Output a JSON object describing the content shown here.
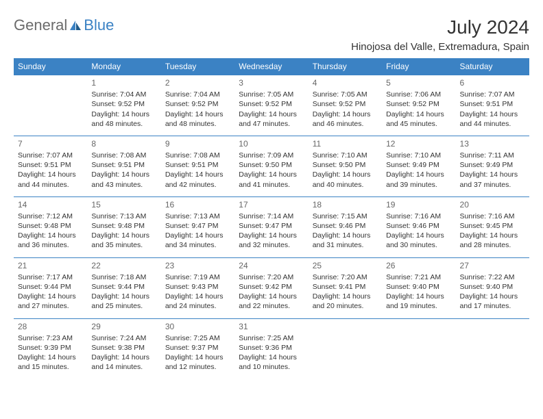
{
  "brand": {
    "part1": "General",
    "part2": "Blue"
  },
  "title": "July 2024",
  "location": "Hinojosa del Valle, Extremadura, Spain",
  "colors": {
    "header_bg": "#3b82c4",
    "header_text": "#ffffff",
    "brand_gray": "#6b6b6b",
    "brand_blue": "#3b82c4",
    "text": "#333333",
    "daynum": "#666666",
    "background": "#ffffff"
  },
  "typography": {
    "title_fontsize": 28,
    "location_fontsize": 15,
    "header_fontsize": 12,
    "cell_fontsize": 10.5,
    "daynum_fontsize": 12,
    "logo_fontsize": 22
  },
  "weekdays": [
    "Sunday",
    "Monday",
    "Tuesday",
    "Wednesday",
    "Thursday",
    "Friday",
    "Saturday"
  ],
  "weeks": [
    [
      null,
      {
        "day": "1",
        "sunrise": "Sunrise: 7:04 AM",
        "sunset": "Sunset: 9:52 PM",
        "dl1": "Daylight: 14 hours",
        "dl2": "and 48 minutes."
      },
      {
        "day": "2",
        "sunrise": "Sunrise: 7:04 AM",
        "sunset": "Sunset: 9:52 PM",
        "dl1": "Daylight: 14 hours",
        "dl2": "and 48 minutes."
      },
      {
        "day": "3",
        "sunrise": "Sunrise: 7:05 AM",
        "sunset": "Sunset: 9:52 PM",
        "dl1": "Daylight: 14 hours",
        "dl2": "and 47 minutes."
      },
      {
        "day": "4",
        "sunrise": "Sunrise: 7:05 AM",
        "sunset": "Sunset: 9:52 PM",
        "dl1": "Daylight: 14 hours",
        "dl2": "and 46 minutes."
      },
      {
        "day": "5",
        "sunrise": "Sunrise: 7:06 AM",
        "sunset": "Sunset: 9:52 PM",
        "dl1": "Daylight: 14 hours",
        "dl2": "and 45 minutes."
      },
      {
        "day": "6",
        "sunrise": "Sunrise: 7:07 AM",
        "sunset": "Sunset: 9:51 PM",
        "dl1": "Daylight: 14 hours",
        "dl2": "and 44 minutes."
      }
    ],
    [
      {
        "day": "7",
        "sunrise": "Sunrise: 7:07 AM",
        "sunset": "Sunset: 9:51 PM",
        "dl1": "Daylight: 14 hours",
        "dl2": "and 44 minutes."
      },
      {
        "day": "8",
        "sunrise": "Sunrise: 7:08 AM",
        "sunset": "Sunset: 9:51 PM",
        "dl1": "Daylight: 14 hours",
        "dl2": "and 43 minutes."
      },
      {
        "day": "9",
        "sunrise": "Sunrise: 7:08 AM",
        "sunset": "Sunset: 9:51 PM",
        "dl1": "Daylight: 14 hours",
        "dl2": "and 42 minutes."
      },
      {
        "day": "10",
        "sunrise": "Sunrise: 7:09 AM",
        "sunset": "Sunset: 9:50 PM",
        "dl1": "Daylight: 14 hours",
        "dl2": "and 41 minutes."
      },
      {
        "day": "11",
        "sunrise": "Sunrise: 7:10 AM",
        "sunset": "Sunset: 9:50 PM",
        "dl1": "Daylight: 14 hours",
        "dl2": "and 40 minutes."
      },
      {
        "day": "12",
        "sunrise": "Sunrise: 7:10 AM",
        "sunset": "Sunset: 9:49 PM",
        "dl1": "Daylight: 14 hours",
        "dl2": "and 39 minutes."
      },
      {
        "day": "13",
        "sunrise": "Sunrise: 7:11 AM",
        "sunset": "Sunset: 9:49 PM",
        "dl1": "Daylight: 14 hours",
        "dl2": "and 37 minutes."
      }
    ],
    [
      {
        "day": "14",
        "sunrise": "Sunrise: 7:12 AM",
        "sunset": "Sunset: 9:48 PM",
        "dl1": "Daylight: 14 hours",
        "dl2": "and 36 minutes."
      },
      {
        "day": "15",
        "sunrise": "Sunrise: 7:13 AM",
        "sunset": "Sunset: 9:48 PM",
        "dl1": "Daylight: 14 hours",
        "dl2": "and 35 minutes."
      },
      {
        "day": "16",
        "sunrise": "Sunrise: 7:13 AM",
        "sunset": "Sunset: 9:47 PM",
        "dl1": "Daylight: 14 hours",
        "dl2": "and 34 minutes."
      },
      {
        "day": "17",
        "sunrise": "Sunrise: 7:14 AM",
        "sunset": "Sunset: 9:47 PM",
        "dl1": "Daylight: 14 hours",
        "dl2": "and 32 minutes."
      },
      {
        "day": "18",
        "sunrise": "Sunrise: 7:15 AM",
        "sunset": "Sunset: 9:46 PM",
        "dl1": "Daylight: 14 hours",
        "dl2": "and 31 minutes."
      },
      {
        "day": "19",
        "sunrise": "Sunrise: 7:16 AM",
        "sunset": "Sunset: 9:46 PM",
        "dl1": "Daylight: 14 hours",
        "dl2": "and 30 minutes."
      },
      {
        "day": "20",
        "sunrise": "Sunrise: 7:16 AM",
        "sunset": "Sunset: 9:45 PM",
        "dl1": "Daylight: 14 hours",
        "dl2": "and 28 minutes."
      }
    ],
    [
      {
        "day": "21",
        "sunrise": "Sunrise: 7:17 AM",
        "sunset": "Sunset: 9:44 PM",
        "dl1": "Daylight: 14 hours",
        "dl2": "and 27 minutes."
      },
      {
        "day": "22",
        "sunrise": "Sunrise: 7:18 AM",
        "sunset": "Sunset: 9:44 PM",
        "dl1": "Daylight: 14 hours",
        "dl2": "and 25 minutes."
      },
      {
        "day": "23",
        "sunrise": "Sunrise: 7:19 AM",
        "sunset": "Sunset: 9:43 PM",
        "dl1": "Daylight: 14 hours",
        "dl2": "and 24 minutes."
      },
      {
        "day": "24",
        "sunrise": "Sunrise: 7:20 AM",
        "sunset": "Sunset: 9:42 PM",
        "dl1": "Daylight: 14 hours",
        "dl2": "and 22 minutes."
      },
      {
        "day": "25",
        "sunrise": "Sunrise: 7:20 AM",
        "sunset": "Sunset: 9:41 PM",
        "dl1": "Daylight: 14 hours",
        "dl2": "and 20 minutes."
      },
      {
        "day": "26",
        "sunrise": "Sunrise: 7:21 AM",
        "sunset": "Sunset: 9:40 PM",
        "dl1": "Daylight: 14 hours",
        "dl2": "and 19 minutes."
      },
      {
        "day": "27",
        "sunrise": "Sunrise: 7:22 AM",
        "sunset": "Sunset: 9:40 PM",
        "dl1": "Daylight: 14 hours",
        "dl2": "and 17 minutes."
      }
    ],
    [
      {
        "day": "28",
        "sunrise": "Sunrise: 7:23 AM",
        "sunset": "Sunset: 9:39 PM",
        "dl1": "Daylight: 14 hours",
        "dl2": "and 15 minutes."
      },
      {
        "day": "29",
        "sunrise": "Sunrise: 7:24 AM",
        "sunset": "Sunset: 9:38 PM",
        "dl1": "Daylight: 14 hours",
        "dl2": "and 14 minutes."
      },
      {
        "day": "30",
        "sunrise": "Sunrise: 7:25 AM",
        "sunset": "Sunset: 9:37 PM",
        "dl1": "Daylight: 14 hours",
        "dl2": "and 12 minutes."
      },
      {
        "day": "31",
        "sunrise": "Sunrise: 7:25 AM",
        "sunset": "Sunset: 9:36 PM",
        "dl1": "Daylight: 14 hours",
        "dl2": "and 10 minutes."
      },
      null,
      null,
      null
    ]
  ]
}
